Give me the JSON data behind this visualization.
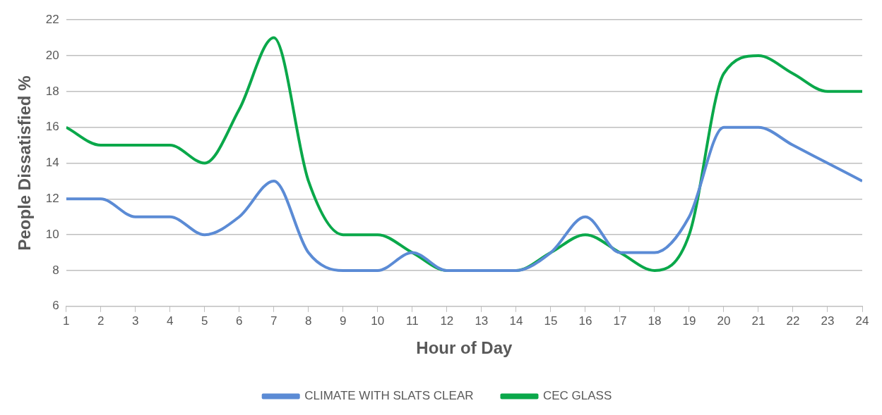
{
  "chart_data": {
    "type": "line",
    "xlabel": "Hour of Day",
    "ylabel": "People Dissatisfied %",
    "x": [
      1,
      2,
      3,
      4,
      5,
      6,
      7,
      8,
      9,
      10,
      11,
      12,
      13,
      14,
      15,
      16,
      17,
      18,
      19,
      20,
      21,
      22,
      23,
      24
    ],
    "xlim": [
      1,
      24
    ],
    "xticks": [
      1,
      2,
      3,
      4,
      5,
      6,
      7,
      8,
      9,
      10,
      11,
      12,
      13,
      14,
      15,
      16,
      17,
      18,
      19,
      20,
      21,
      22,
      23,
      24
    ],
    "series": [
      {
        "name": "CLIMATE WITH SLATS CLEAR",
        "color": "#5b8bd5",
        "values": [
          12,
          12,
          11,
          11,
          10,
          11,
          13,
          9,
          8,
          8,
          9,
          8,
          8,
          8,
          9,
          11,
          9,
          9,
          11,
          16,
          16,
          15,
          14,
          13
        ]
      },
      {
        "name": "CEC GLASS",
        "color": "#0aa84a",
        "values": [
          16,
          15,
          15,
          15,
          14,
          17,
          21,
          13,
          10,
          10,
          9,
          8,
          8,
          8,
          9,
          10,
          9,
          8,
          10,
          19,
          20,
          19,
          18,
          18
        ]
      }
    ],
    "ylim": [
      6,
      22
    ],
    "yticks": [
      6,
      8,
      10,
      12,
      14,
      16,
      18,
      20,
      22
    ],
    "grid": "y",
    "legend": "bottom",
    "marker": "none",
    "line_style": "solid"
  }
}
